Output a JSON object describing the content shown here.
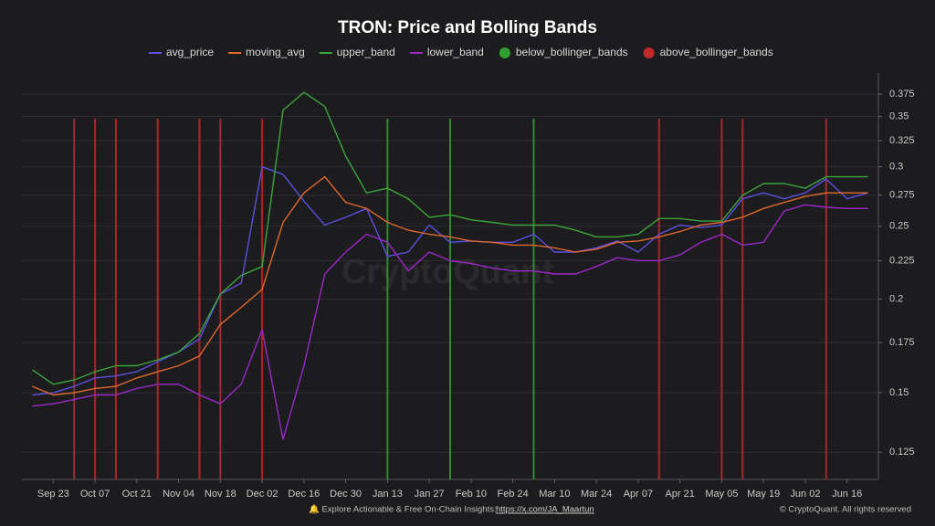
{
  "chart_data": {
    "type": "line",
    "title": "TRON: Price and Bolling Bands",
    "categories": [
      null,
      "Sep 23",
      null,
      "Oct 07",
      null,
      "Oct 21",
      null,
      "Nov 04",
      null,
      "Nov 18",
      null,
      "Dec 02",
      null,
      "Dec 16",
      null,
      "Dec 30",
      null,
      "Jan 13",
      null,
      "Jan 27",
      null,
      "Feb 10",
      null,
      "Feb 24",
      null,
      "Mar 10",
      null,
      "Mar 24",
      null,
      "Apr 07",
      null,
      "Apr 21",
      null,
      "May 05",
      null,
      "May 19",
      null,
      "Jun 02",
      null,
      "Jun 16",
      null
    ],
    "series": [
      {
        "name": "avg_price",
        "color": "#5b4fe0",
        "kind": "line",
        "values": [
          0.149,
          0.15,
          0.153,
          0.157,
          0.158,
          0.16,
          0.165,
          0.17,
          0.177,
          0.203,
          0.21,
          0.3,
          0.293,
          0.27,
          0.251,
          0.257,
          0.264,
          0.228,
          0.231,
          0.251,
          0.238,
          0.239,
          0.238,
          0.238,
          0.244,
          0.231,
          0.231,
          0.234,
          0.239,
          0.231,
          0.244,
          0.251,
          0.249,
          0.251,
          0.272,
          0.277,
          0.272,
          0.277,
          0.289,
          0.272,
          0.277
        ]
      },
      {
        "name": "moving_avg",
        "color": "#e0672a",
        "kind": "line",
        "values": [
          0.153,
          0.149,
          0.15,
          0.152,
          0.153,
          0.157,
          0.16,
          0.163,
          0.168,
          0.185,
          0.195,
          0.206,
          0.253,
          0.277,
          0.291,
          0.269,
          0.264,
          0.253,
          0.247,
          0.244,
          0.242,
          0.239,
          0.238,
          0.236,
          0.236,
          0.234,
          0.231,
          0.233,
          0.238,
          0.239,
          0.242,
          0.246,
          0.251,
          0.253,
          0.257,
          0.264,
          0.269,
          0.274,
          0.277,
          0.277,
          0.277
        ]
      },
      {
        "name": "upper_band",
        "color": "#3aa63a",
        "kind": "line",
        "values": [
          0.161,
          0.154,
          0.156,
          0.16,
          0.163,
          0.163,
          0.166,
          0.17,
          0.18,
          0.203,
          0.215,
          0.221,
          0.357,
          0.377,
          0.361,
          0.31,
          0.277,
          0.281,
          0.272,
          0.257,
          0.259,
          0.255,
          0.253,
          0.251,
          0.251,
          0.251,
          0.247,
          0.242,
          0.242,
          0.244,
          0.256,
          0.256,
          0.254,
          0.254,
          0.275,
          0.285,
          0.285,
          0.281,
          0.291,
          0.291,
          0.291
        ]
      },
      {
        "name": "lower_band",
        "color": "#9b27c9",
        "kind": "line",
        "values": [
          0.144,
          0.145,
          0.147,
          0.149,
          0.149,
          0.152,
          0.154,
          0.154,
          0.149,
          0.145,
          0.154,
          0.182,
          0.13,
          0.163,
          0.216,
          0.231,
          0.244,
          0.238,
          0.218,
          0.231,
          0.225,
          0.223,
          0.22,
          0.218,
          0.218,
          0.216,
          0.216,
          0.221,
          0.227,
          0.225,
          0.225,
          0.229,
          0.238,
          0.244,
          0.236,
          0.238,
          0.262,
          0.267,
          0.265,
          0.264,
          0.264
        ]
      },
      {
        "name": "below_bollinger_bands",
        "color": "#2fa02f",
        "kind": "signal",
        "values": [
          null,
          null,
          null,
          null,
          null,
          null,
          null,
          null,
          null,
          null,
          null,
          null,
          null,
          null,
          null,
          null,
          null,
          1,
          null,
          null,
          1,
          null,
          null,
          null,
          1,
          null,
          null,
          null,
          null,
          null,
          null,
          null,
          null,
          null,
          null,
          null,
          null,
          null,
          null,
          null,
          null
        ]
      },
      {
        "name": "above_bollinger_bands",
        "color": "#c0282a",
        "kind": "signal",
        "values": [
          null,
          null,
          1,
          1,
          1,
          null,
          1,
          null,
          1,
          1,
          null,
          1,
          null,
          null,
          null,
          null,
          null,
          null,
          null,
          null,
          null,
          null,
          null,
          null,
          null,
          null,
          null,
          null,
          null,
          null,
          1,
          null,
          null,
          1,
          1,
          null,
          null,
          null,
          1,
          null,
          null
        ]
      }
    ],
    "ylim": [
      0.115,
      0.4
    ],
    "log_scale": true,
    "yticks": [
      0.125,
      0.15,
      0.175,
      0.2,
      0.225,
      0.25,
      0.275,
      0.3,
      0.325,
      0.35,
      0.375
    ],
    "grid": true,
    "legend": "top",
    "watermark": "CryptoQuant",
    "footer": {
      "text": "🔔 Explore Actionable & Free On-Chain Insights:",
      "link": "https://x.com/JA_Maartun",
      "credit": "© CryptoQuant. All rights reserved"
    }
  }
}
